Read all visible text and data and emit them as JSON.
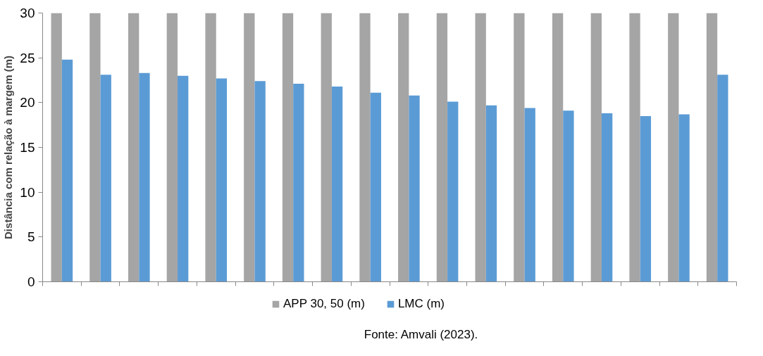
{
  "chart_data": {
    "type": "bar",
    "ylabel": "Distância com relação à margem (m)",
    "categories": [
      null,
      null,
      null,
      null,
      null,
      null,
      null,
      null,
      null,
      null,
      null,
      null,
      null,
      null,
      null,
      null,
      null,
      null
    ],
    "series": [
      {
        "name": "APP 30, 50 (m)",
        "color": "#a5a5a5",
        "values": [
          30,
          30,
          30,
          30,
          30,
          30,
          30,
          30,
          30,
          30,
          30,
          30,
          30,
          30,
          30,
          30,
          30,
          30
        ]
      },
      {
        "name": "LMC (m)",
        "color": "#5b9bd5",
        "values": [
          24.8,
          23.1,
          23.3,
          23.0,
          22.7,
          22.4,
          22.1,
          21.8,
          21.1,
          20.8,
          20.1,
          19.7,
          19.4,
          19.1,
          18.8,
          18.5,
          18.7,
          23.1
        ]
      }
    ],
    "ylim": [
      0,
      30
    ],
    "yticks": [
      0,
      5,
      10,
      15,
      20,
      25,
      30
    ],
    "grid": false,
    "legend": "bottom",
    "annotations": [
      "Fonte: Amvali (2023)."
    ]
  }
}
